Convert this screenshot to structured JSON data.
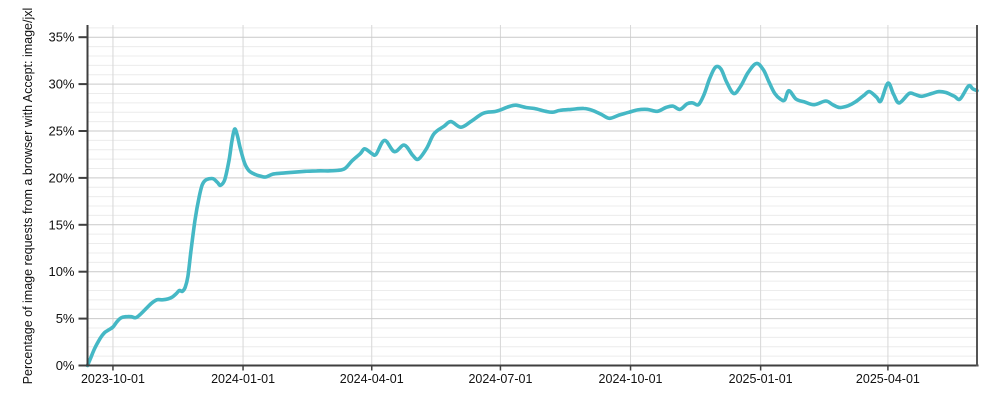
{
  "colors": {
    "line": "#45b8c5",
    "grid_minor": "#ececec",
    "grid_major": "#c9c9c9",
    "grid_vertical": "#d7d7d7",
    "axis": "#3f3f3f",
    "right_border": "#555555",
    "text": "#111111",
    "background": "#ffffff"
  },
  "chart_data": {
    "type": "line",
    "title": "",
    "xlabel": "",
    "ylabel": "Percentage of image requests from a browser with Accept: image/jxl",
    "legend": "none",
    "grid": true,
    "xlim": [
      "2023-09-13",
      "2025-06-03"
    ],
    "ylim": [
      0,
      36.3
    ],
    "y_major_ticks": [
      0,
      5,
      10,
      15,
      20,
      25,
      30,
      35
    ],
    "y_tick_labels": [
      "0%",
      "5%",
      "10%",
      "15%",
      "20%",
      "25%",
      "30%",
      "35%"
    ],
    "y_minor_step": 1,
    "x_tick_labels": [
      "2023-10-01",
      "2024-01-01",
      "2024-04-01",
      "2024-07-01",
      "2024-10-01",
      "2025-01-01",
      "2025-04-01"
    ],
    "series": [
      {
        "name": "Accept: image/jxl",
        "points": [
          [
            "2023-09-13",
            0.0
          ],
          [
            "2023-09-15",
            0.7
          ],
          [
            "2023-09-18",
            1.8
          ],
          [
            "2023-09-22",
            2.9
          ],
          [
            "2023-09-25",
            3.5
          ],
          [
            "2023-09-28",
            3.8
          ],
          [
            "2023-10-01",
            4.1
          ],
          [
            "2023-10-04",
            4.7
          ],
          [
            "2023-10-07",
            5.1
          ],
          [
            "2023-10-10",
            5.2
          ],
          [
            "2023-10-14",
            5.2
          ],
          [
            "2023-10-17",
            5.1
          ],
          [
            "2023-10-20",
            5.4
          ],
          [
            "2023-10-24",
            6.0
          ],
          [
            "2023-10-28",
            6.6
          ],
          [
            "2023-11-01",
            7.0
          ],
          [
            "2023-11-05",
            7.0
          ],
          [
            "2023-11-09",
            7.1
          ],
          [
            "2023-11-12",
            7.3
          ],
          [
            "2023-11-15",
            7.7
          ],
          [
            "2023-11-17",
            8.0
          ],
          [
            "2023-11-19",
            7.9
          ],
          [
            "2023-11-21",
            8.3
          ],
          [
            "2023-11-23",
            9.5
          ],
          [
            "2023-11-25",
            12.0
          ],
          [
            "2023-11-28",
            15.5
          ],
          [
            "2023-12-01",
            18.0
          ],
          [
            "2023-12-03",
            19.2
          ],
          [
            "2023-12-05",
            19.7
          ],
          [
            "2023-12-08",
            19.9
          ],
          [
            "2023-12-11",
            19.9
          ],
          [
            "2023-12-14",
            19.5
          ],
          [
            "2023-12-16",
            19.2
          ],
          [
            "2023-12-19",
            19.8
          ],
          [
            "2023-12-22",
            21.8
          ],
          [
            "2023-12-24",
            23.8
          ],
          [
            "2023-12-26",
            25.2
          ],
          [
            "2023-12-28",
            24.5
          ],
          [
            "2023-12-30",
            23.2
          ],
          [
            "2024-01-02",
            21.6
          ],
          [
            "2024-01-05",
            20.8
          ],
          [
            "2024-01-09",
            20.4
          ],
          [
            "2024-01-13",
            20.2
          ],
          [
            "2024-01-17",
            20.1
          ],
          [
            "2024-01-22",
            20.4
          ],
          [
            "2024-01-28",
            20.5
          ],
          [
            "2024-02-05",
            20.6
          ],
          [
            "2024-02-14",
            20.7
          ],
          [
            "2024-02-22",
            20.75
          ],
          [
            "2024-03-01",
            20.75
          ],
          [
            "2024-03-08",
            20.8
          ],
          [
            "2024-03-13",
            21.0
          ],
          [
            "2024-03-18",
            21.8
          ],
          [
            "2024-03-24",
            22.6
          ],
          [
            "2024-03-27",
            23.1
          ],
          [
            "2024-04-01",
            22.6
          ],
          [
            "2024-04-04",
            22.5
          ],
          [
            "2024-04-10",
            24.0
          ],
          [
            "2024-04-17",
            22.8
          ],
          [
            "2024-04-24",
            23.5
          ],
          [
            "2024-04-30",
            22.4
          ],
          [
            "2024-05-04",
            22.0
          ],
          [
            "2024-05-10",
            23.2
          ],
          [
            "2024-05-15",
            24.7
          ],
          [
            "2024-05-22",
            25.5
          ],
          [
            "2024-05-27",
            26.0
          ],
          [
            "2024-06-03",
            25.4
          ],
          [
            "2024-06-10",
            26.0
          ],
          [
            "2024-06-19",
            26.9
          ],
          [
            "2024-06-28",
            27.1
          ],
          [
            "2024-07-07",
            27.6
          ],
          [
            "2024-07-12",
            27.75
          ],
          [
            "2024-07-19",
            27.5
          ],
          [
            "2024-07-25",
            27.4
          ],
          [
            "2024-08-02",
            27.1
          ],
          [
            "2024-08-07",
            27.0
          ],
          [
            "2024-08-12",
            27.2
          ],
          [
            "2024-08-20",
            27.3
          ],
          [
            "2024-08-29",
            27.4
          ],
          [
            "2024-09-04",
            27.2
          ],
          [
            "2024-09-10",
            26.8
          ],
          [
            "2024-09-16",
            26.35
          ],
          [
            "2024-09-23",
            26.7
          ],
          [
            "2024-09-30",
            27.0
          ],
          [
            "2024-10-06",
            27.25
          ],
          [
            "2024-10-13",
            27.3
          ],
          [
            "2024-10-20",
            27.1
          ],
          [
            "2024-10-26",
            27.5
          ],
          [
            "2024-10-31",
            27.65
          ],
          [
            "2024-11-05",
            27.3
          ],
          [
            "2024-11-10",
            27.9
          ],
          [
            "2024-11-14",
            28.0
          ],
          [
            "2024-11-18",
            27.8
          ],
          [
            "2024-11-22",
            28.9
          ],
          [
            "2024-11-26",
            30.6
          ],
          [
            "2024-11-30",
            31.8
          ],
          [
            "2024-12-04",
            31.6
          ],
          [
            "2024-12-08",
            30.2
          ],
          [
            "2024-12-13",
            29.0
          ],
          [
            "2024-12-18",
            29.8
          ],
          [
            "2024-12-23",
            31.2
          ],
          [
            "2024-12-29",
            32.2
          ],
          [
            "2025-01-03",
            31.5
          ],
          [
            "2025-01-07",
            30.2
          ],
          [
            "2025-01-11",
            29.0
          ],
          [
            "2025-01-15",
            28.4
          ],
          [
            "2025-01-18",
            28.3
          ],
          [
            "2025-01-21",
            29.3
          ],
          [
            "2025-01-26",
            28.4
          ],
          [
            "2025-02-01",
            28.1
          ],
          [
            "2025-02-08",
            27.8
          ],
          [
            "2025-02-16",
            28.2
          ],
          [
            "2025-02-21",
            27.8
          ],
          [
            "2025-02-26",
            27.5
          ],
          [
            "2025-03-04",
            27.7
          ],
          [
            "2025-03-09",
            28.1
          ],
          [
            "2025-03-15",
            28.8
          ],
          [
            "2025-03-19",
            29.2
          ],
          [
            "2025-03-24",
            28.6
          ],
          [
            "2025-03-27",
            28.2
          ],
          [
            "2025-04-01",
            30.1
          ],
          [
            "2025-04-05",
            28.9
          ],
          [
            "2025-04-09",
            28.0
          ],
          [
            "2025-04-16",
            29.0
          ],
          [
            "2025-04-20",
            28.9
          ],
          [
            "2025-04-25",
            28.7
          ],
          [
            "2025-05-02",
            29.0
          ],
          [
            "2025-05-07",
            29.2
          ],
          [
            "2025-05-12",
            29.1
          ],
          [
            "2025-05-18",
            28.7
          ],
          [
            "2025-05-22",
            28.4
          ],
          [
            "2025-05-28",
            29.8
          ],
          [
            "2025-05-31",
            29.5
          ],
          [
            "2025-06-03",
            29.3
          ]
        ]
      }
    ]
  }
}
